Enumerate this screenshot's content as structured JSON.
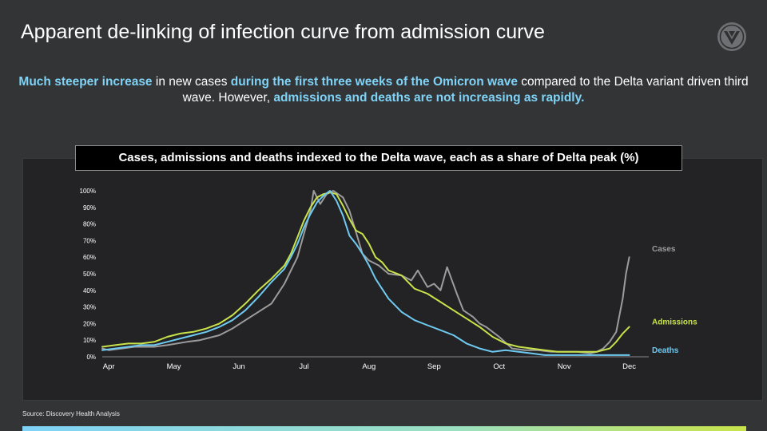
{
  "title": "Apparent de-linking of infection curve from admission curve",
  "subtitle": {
    "p1": "Much steeper increase",
    "p2": " in new cases ",
    "p3": "during the first three weeks of the Omicron wave",
    "p4": " compared to the Delta variant driven third wave. However, ",
    "p5": "admissions and deaths are not increasing as rapidly."
  },
  "source": "Source: Discovery Health Analysis",
  "colors": {
    "cases": "#9c9c9c",
    "admissions": "#c8e34a",
    "deaths": "#6fcaf2",
    "highlight": "#7fd3f7"
  },
  "chart_data": {
    "type": "line",
    "title": "Cases, admissions and deaths indexed to the Delta wave, each as a share of Delta peak (%)",
    "xlabel": "",
    "ylabel": "",
    "ylim": [
      0,
      100
    ],
    "yticks": [
      "0%",
      "10%",
      "20%",
      "30%",
      "40%",
      "50%",
      "60%",
      "70%",
      "80%",
      "90%",
      "100%"
    ],
    "xticks": [
      "Apr",
      "May",
      "Jun",
      "Jul",
      "Aug",
      "Sep",
      "Oct",
      "Nov",
      "Dec"
    ],
    "x_unit": "months since start of April",
    "series": [
      {
        "name": "Cases",
        "points": [
          [
            0,
            5
          ],
          [
            0.1,
            4
          ],
          [
            0.3,
            5
          ],
          [
            0.5,
            6
          ],
          [
            0.8,
            6
          ],
          [
            1,
            7
          ],
          [
            1.3,
            9
          ],
          [
            1.5,
            10
          ],
          [
            1.8,
            13
          ],
          [
            2,
            17
          ],
          [
            2.2,
            22
          ],
          [
            2.4,
            27
          ],
          [
            2.6,
            32
          ],
          [
            2.8,
            44
          ],
          [
            3,
            60
          ],
          [
            3.1,
            74
          ],
          [
            3.2,
            88
          ],
          [
            3.25,
            100
          ],
          [
            3.35,
            92
          ],
          [
            3.45,
            98
          ],
          [
            3.55,
            100
          ],
          [
            3.7,
            96
          ],
          [
            3.8,
            88
          ],
          [
            3.9,
            75
          ],
          [
            4,
            62
          ],
          [
            4.1,
            58
          ],
          [
            4.25,
            55
          ],
          [
            4.4,
            50
          ],
          [
            4.6,
            49
          ],
          [
            4.75,
            46
          ],
          [
            4.85,
            52
          ],
          [
            5,
            42
          ],
          [
            5.1,
            44
          ],
          [
            5.2,
            40
          ],
          [
            5.3,
            54
          ],
          [
            5.45,
            38
          ],
          [
            5.55,
            28
          ],
          [
            5.7,
            24
          ],
          [
            5.8,
            20
          ],
          [
            5.9,
            18
          ],
          [
            6.1,
            12
          ],
          [
            6.3,
            5
          ],
          [
            6.5,
            4
          ],
          [
            6.7,
            4
          ],
          [
            6.9,
            3
          ],
          [
            7.1,
            3
          ],
          [
            7.3,
            3
          ],
          [
            7.5,
            2
          ],
          [
            7.6,
            3
          ],
          [
            7.7,
            5
          ],
          [
            7.8,
            9
          ],
          [
            7.9,
            15
          ],
          [
            8,
            35
          ],
          [
            8.05,
            50
          ],
          [
            8.1,
            60
          ]
        ]
      },
      {
        "name": "Admissions",
        "points": [
          [
            0,
            6
          ],
          [
            0.2,
            7
          ],
          [
            0.4,
            8
          ],
          [
            0.6,
            8
          ],
          [
            0.8,
            9
          ],
          [
            1,
            12
          ],
          [
            1.2,
            14
          ],
          [
            1.4,
            15
          ],
          [
            1.6,
            17
          ],
          [
            1.8,
            20
          ],
          [
            2,
            25
          ],
          [
            2.2,
            32
          ],
          [
            2.4,
            40
          ],
          [
            2.6,
            47
          ],
          [
            2.8,
            55
          ],
          [
            2.9,
            62
          ],
          [
            3,
            72
          ],
          [
            3.1,
            82
          ],
          [
            3.2,
            90
          ],
          [
            3.3,
            96
          ],
          [
            3.4,
            98
          ],
          [
            3.5,
            99
          ],
          [
            3.6,
            98
          ],
          [
            3.7,
            91
          ],
          [
            3.8,
            83
          ],
          [
            3.9,
            76
          ],
          [
            4,
            74
          ],
          [
            4.1,
            68
          ],
          [
            4.2,
            60
          ],
          [
            4.3,
            57
          ],
          [
            4.4,
            52
          ],
          [
            4.6,
            49
          ],
          [
            4.8,
            41
          ],
          [
            5,
            38
          ],
          [
            5.2,
            33
          ],
          [
            5.4,
            28
          ],
          [
            5.6,
            23
          ],
          [
            5.8,
            18
          ],
          [
            6,
            12
          ],
          [
            6.2,
            8
          ],
          [
            6.4,
            6
          ],
          [
            6.6,
            5
          ],
          [
            6.8,
            4
          ],
          [
            7,
            3
          ],
          [
            7.2,
            3
          ],
          [
            7.4,
            3
          ],
          [
            7.6,
            3
          ],
          [
            7.8,
            5
          ],
          [
            7.9,
            9
          ],
          [
            8,
            14
          ],
          [
            8.1,
            18
          ]
        ]
      },
      {
        "name": "Deaths",
        "points": [
          [
            0,
            4
          ],
          [
            0.2,
            5
          ],
          [
            0.4,
            6
          ],
          [
            0.6,
            7
          ],
          [
            0.8,
            7
          ],
          [
            1,
            9
          ],
          [
            1.2,
            11
          ],
          [
            1.4,
            13
          ],
          [
            1.6,
            15
          ],
          [
            1.8,
            18
          ],
          [
            2,
            22
          ],
          [
            2.2,
            28
          ],
          [
            2.4,
            36
          ],
          [
            2.6,
            45
          ],
          [
            2.8,
            53
          ],
          [
            2.9,
            60
          ],
          [
            3,
            68
          ],
          [
            3.1,
            78
          ],
          [
            3.2,
            86
          ],
          [
            3.3,
            93
          ],
          [
            3.4,
            97
          ],
          [
            3.5,
            100
          ],
          [
            3.6,
            94
          ],
          [
            3.7,
            85
          ],
          [
            3.8,
            73
          ],
          [
            3.9,
            68
          ],
          [
            4,
            62
          ],
          [
            4.1,
            55
          ],
          [
            4.2,
            47
          ],
          [
            4.3,
            41
          ],
          [
            4.4,
            35
          ],
          [
            4.6,
            27
          ],
          [
            4.8,
            22
          ],
          [
            5,
            19
          ],
          [
            5.2,
            16
          ],
          [
            5.4,
            13
          ],
          [
            5.6,
            8
          ],
          [
            5.8,
            5
          ],
          [
            6,
            3
          ],
          [
            6.2,
            4
          ],
          [
            6.4,
            3
          ],
          [
            6.6,
            2
          ],
          [
            6.8,
            1
          ],
          [
            7,
            1
          ],
          [
            7.2,
            1
          ],
          [
            7.4,
            1
          ],
          [
            7.6,
            1
          ],
          [
            7.8,
            1
          ],
          [
            8,
            1
          ],
          [
            8.1,
            1
          ]
        ]
      }
    ]
  }
}
